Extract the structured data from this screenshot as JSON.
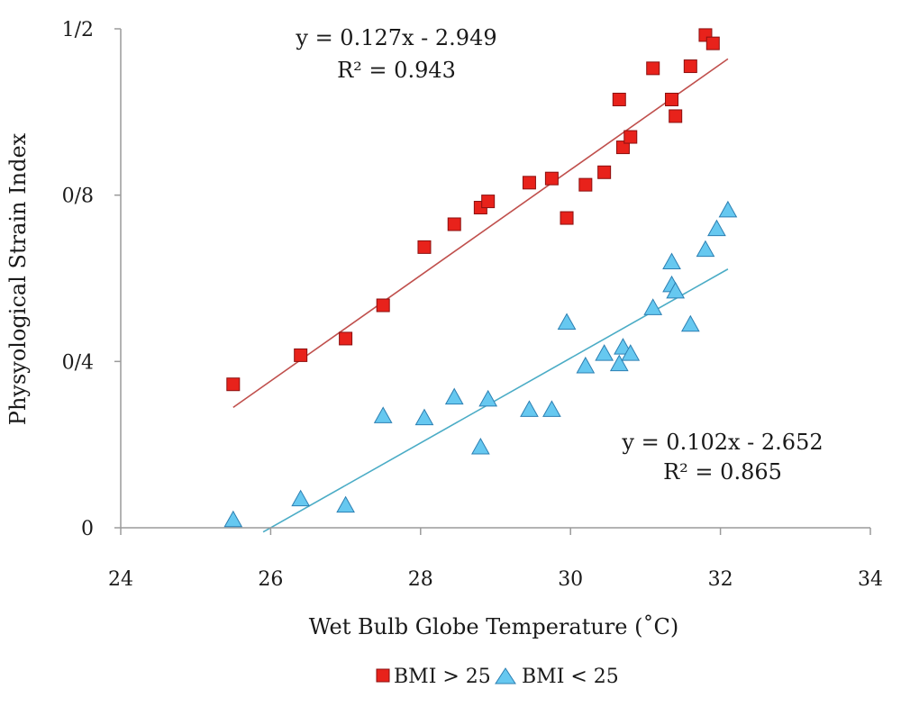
{
  "chart_data": {
    "type": "scatter",
    "xlabel": "Wet Bulb Globe Temperature (˚C)",
    "ylabel": "Physyological Strain Index",
    "xlim": [
      24,
      34
    ],
    "ylim": [
      0,
      1.2
    ],
    "x_ticks": [
      24,
      26,
      28,
      30,
      32,
      34
    ],
    "x_tick_labels": [
      "24",
      "26",
      "28",
      "30",
      "32",
      "34"
    ],
    "y_ticks": [
      0,
      0.4,
      0.8,
      1.2
    ],
    "y_tick_labels": [
      "0",
      "0/4",
      "0/8",
      "1/2"
    ],
    "grid": false,
    "legend_placement": "bottom",
    "series": [
      {
        "name": "BMI > 25",
        "marker": "square",
        "color": "#e8221b",
        "edge_color": "#8b1010",
        "trend_color": "#c0504d",
        "trendline": {
          "slope": 0.127,
          "intercept": -2.949,
          "x_range": [
            25.5,
            32.1
          ]
        },
        "equation": "y = 0.127x - 2.949",
        "r2": "R² = 0.943",
        "points": [
          {
            "x": 25.5,
            "y": 0.345
          },
          {
            "x": 26.4,
            "y": 0.415
          },
          {
            "x": 27.0,
            "y": 0.455
          },
          {
            "x": 27.5,
            "y": 0.535
          },
          {
            "x": 28.05,
            "y": 0.675
          },
          {
            "x": 28.45,
            "y": 0.73
          },
          {
            "x": 28.8,
            "y": 0.77
          },
          {
            "x": 28.9,
            "y": 0.785
          },
          {
            "x": 29.45,
            "y": 0.83
          },
          {
            "x": 29.75,
            "y": 0.84
          },
          {
            "x": 29.95,
            "y": 0.745
          },
          {
            "x": 30.2,
            "y": 0.825
          },
          {
            "x": 30.45,
            "y": 0.855
          },
          {
            "x": 30.65,
            "y": 1.03
          },
          {
            "x": 30.7,
            "y": 0.915
          },
          {
            "x": 30.8,
            "y": 0.94
          },
          {
            "x": 31.1,
            "y": 1.105
          },
          {
            "x": 31.35,
            "y": 1.03
          },
          {
            "x": 31.4,
            "y": 0.99
          },
          {
            "x": 31.6,
            "y": 1.11
          },
          {
            "x": 31.8,
            "y": 1.185
          },
          {
            "x": 31.9,
            "y": 1.165
          }
        ]
      },
      {
        "name": "BMI < 25",
        "marker": "triangle",
        "color": "#66c8f0",
        "edge_color": "#2c7fb2",
        "trend_color": "#4bacc6",
        "trendline": {
          "slope": 0.102,
          "intercept": -2.652,
          "x_range": [
            25.9,
            32.1
          ]
        },
        "equation": "y = 0.102x - 2.652",
        "r2": "R² = 0.865",
        "points": [
          {
            "x": 25.5,
            "y": 0.02
          },
          {
            "x": 26.4,
            "y": 0.07
          },
          {
            "x": 27.0,
            "y": 0.055
          },
          {
            "x": 27.5,
            "y": 0.27
          },
          {
            "x": 28.05,
            "y": 0.265
          },
          {
            "x": 28.45,
            "y": 0.315
          },
          {
            "x": 28.8,
            "y": 0.195
          },
          {
            "x": 28.9,
            "y": 0.31
          },
          {
            "x": 29.45,
            "y": 0.285
          },
          {
            "x": 29.75,
            "y": 0.285
          },
          {
            "x": 29.95,
            "y": 0.495
          },
          {
            "x": 30.2,
            "y": 0.39
          },
          {
            "x": 30.45,
            "y": 0.42
          },
          {
            "x": 30.65,
            "y": 0.395
          },
          {
            "x": 30.7,
            "y": 0.435
          },
          {
            "x": 30.8,
            "y": 0.42
          },
          {
            "x": 31.1,
            "y": 0.53
          },
          {
            "x": 31.35,
            "y": 0.64
          },
          {
            "x": 31.35,
            "y": 0.585
          },
          {
            "x": 31.4,
            "y": 0.57
          },
          {
            "x": 31.6,
            "y": 0.49
          },
          {
            "x": 31.8,
            "y": 0.67
          },
          {
            "x": 31.95,
            "y": 0.72
          },
          {
            "x": 32.1,
            "y": 0.765
          }
        ]
      }
    ]
  }
}
